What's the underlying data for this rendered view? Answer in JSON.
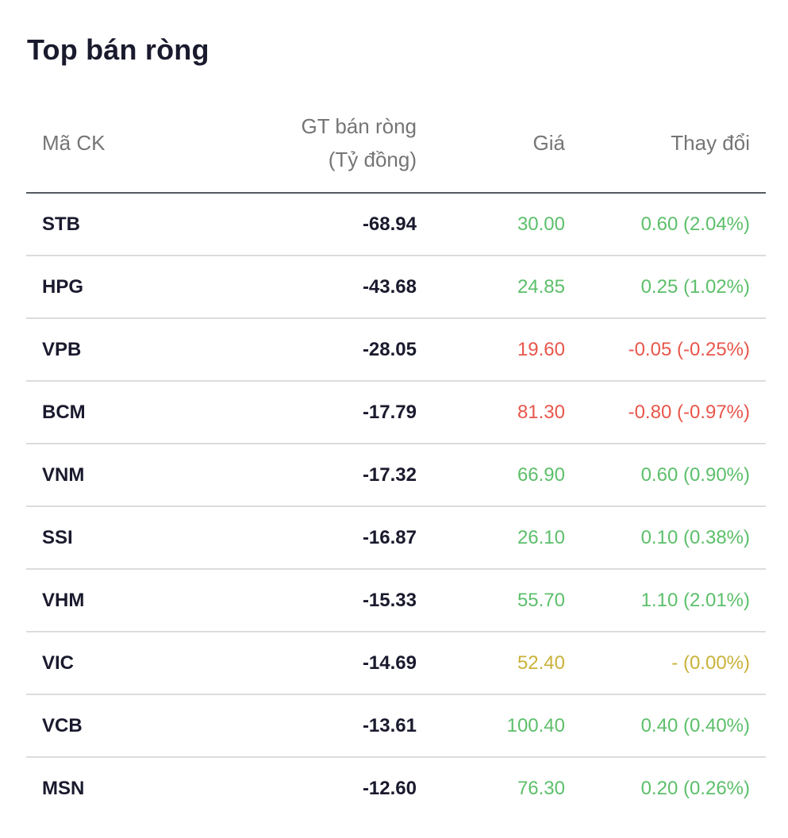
{
  "title": "Top bán ròng",
  "columns": {
    "code": "Mã CK",
    "value_line1": "GT bán ròng",
    "value_line2": "(Tỷ đồng)",
    "price": "Giá",
    "change": "Thay đổi"
  },
  "status_colors": {
    "up": "#5cbf6a",
    "down": "#e8564b",
    "ref": "#c9b23a"
  },
  "rows": [
    {
      "code": "STB",
      "value": "-68.94",
      "price": "30.00",
      "change": "0.60 (2.04%)",
      "status": "up"
    },
    {
      "code": "HPG",
      "value": "-43.68",
      "price": "24.85",
      "change": "0.25 (1.02%)",
      "status": "up"
    },
    {
      "code": "VPB",
      "value": "-28.05",
      "price": "19.60",
      "change": "-0.05 (-0.25%)",
      "status": "down"
    },
    {
      "code": "BCM",
      "value": "-17.79",
      "price": "81.30",
      "change": "-0.80 (-0.97%)",
      "status": "down"
    },
    {
      "code": "VNM",
      "value": "-17.32",
      "price": "66.90",
      "change": "0.60 (0.90%)",
      "status": "up"
    },
    {
      "code": "SSI",
      "value": "-16.87",
      "price": "26.10",
      "change": "0.10 (0.38%)",
      "status": "up"
    },
    {
      "code": "VHM",
      "value": "-15.33",
      "price": "55.70",
      "change": "1.10 (2.01%)",
      "status": "up"
    },
    {
      "code": "VIC",
      "value": "-14.69",
      "price": "52.40",
      "change": "- (0.00%)",
      "status": "ref"
    },
    {
      "code": "VCB",
      "value": "-13.61",
      "price": "100.40",
      "change": "0.40 (0.40%)",
      "status": "up"
    },
    {
      "code": "MSN",
      "value": "-12.60",
      "price": "76.30",
      "change": "0.20 (0.26%)",
      "status": "up"
    }
  ]
}
